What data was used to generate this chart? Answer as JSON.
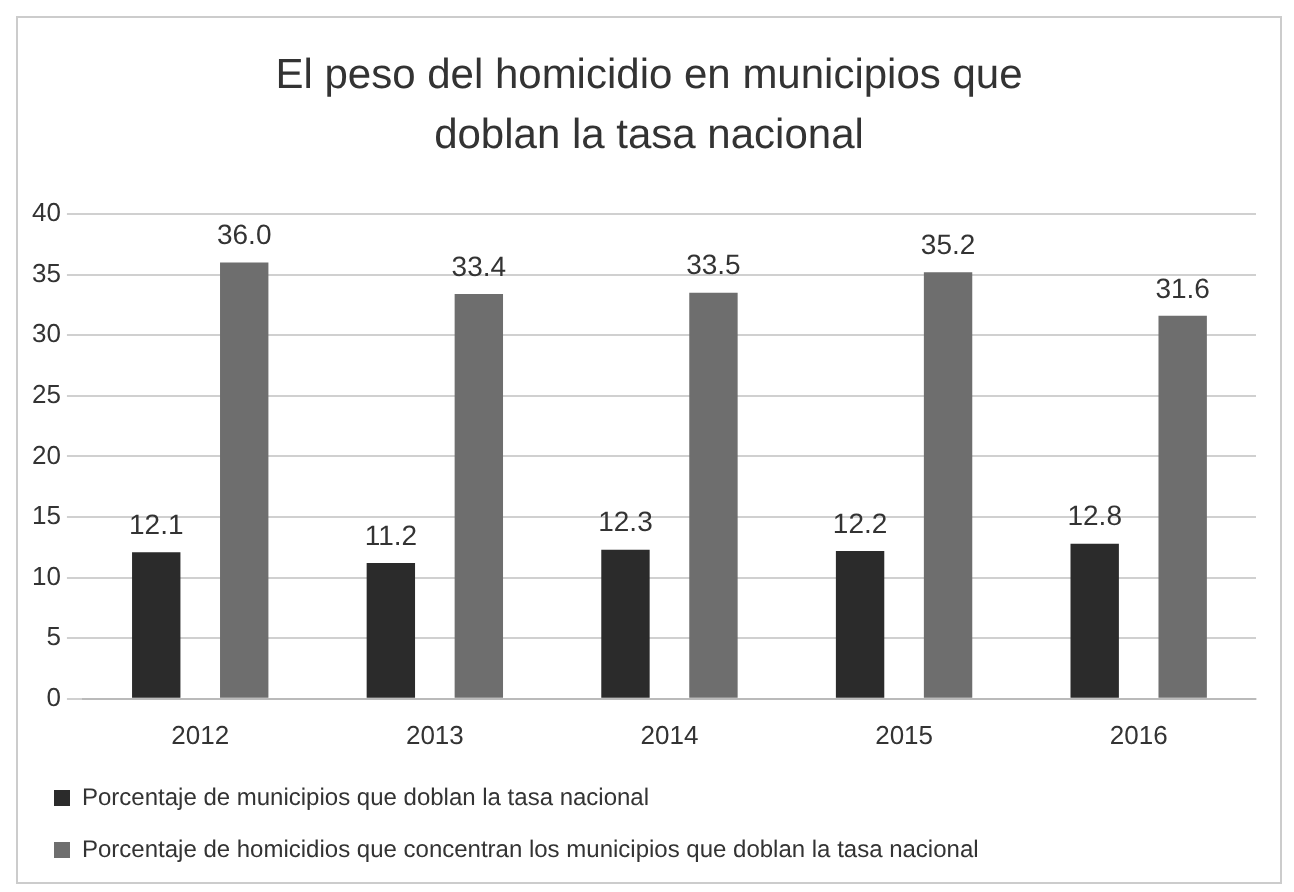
{
  "chart_data": {
    "type": "bar",
    "title": "El peso del homicidio  en municipios  que doblan la tasa nacional",
    "categories": [
      "2012",
      "2013",
      "2014",
      "2015",
      "2016"
    ],
    "series": [
      {
        "name": "Porcentaje de municipios que doblan la tasa nacional",
        "color": "#2b2b2b",
        "values": [
          12.1,
          11.2,
          12.3,
          12.2,
          12.8
        ],
        "value_labels": [
          "12.1",
          "11.2",
          "12.3",
          "12.2",
          "12.8"
        ]
      },
      {
        "name": "Porcentaje de homicidios que concentran los municipios que doblan la tasa nacional",
        "color": "#6e6e6e",
        "values": [
          36.0,
          33.4,
          33.5,
          35.2,
          31.6
        ],
        "value_labels": [
          "36.0",
          "33.4",
          "33.5",
          "35.2",
          "31.6"
        ]
      }
    ],
    "ylim": [
      0,
      40
    ],
    "yticks": [
      0,
      5,
      10,
      15,
      20,
      25,
      30,
      35,
      40
    ],
    "grid": "y",
    "legend": "bottom"
  }
}
